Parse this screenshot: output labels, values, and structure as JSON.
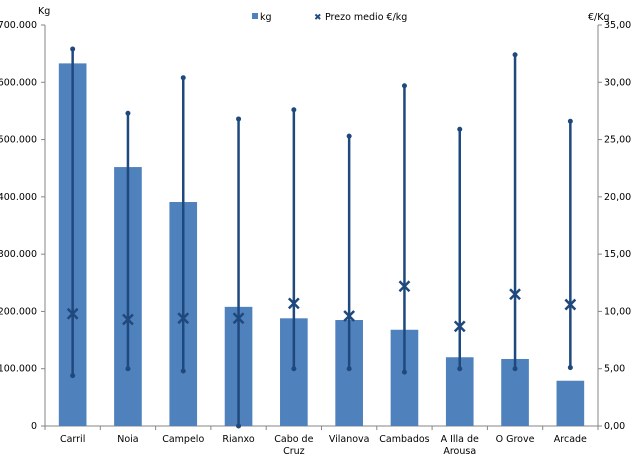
{
  "chart_data": {
    "type": "bar",
    "categories": [
      "Carril",
      "Noia",
      "Campelo",
      "Rianxo",
      "Cabo de Cruz",
      "Vilanova",
      "Cambados",
      "A Illa de Arousa",
      "O Grove",
      "Arcade"
    ],
    "category_lines": [
      [
        "Carril"
      ],
      [
        "Noia"
      ],
      [
        "Campelo"
      ],
      [
        "Rianxo"
      ],
      [
        "Cabo de",
        "Cruz"
      ],
      [
        "Vilanova"
      ],
      [
        "Cambados"
      ],
      [
        "A Illa de",
        "Arousa"
      ],
      [
        "O Grove"
      ],
      [
        "Arcade"
      ]
    ],
    "series": [
      {
        "name": "kg",
        "type": "bar",
        "axis": "left",
        "color": "#4f81bd",
        "values": [
          633000,
          452000,
          391000,
          208000,
          188000,
          185000,
          168000,
          120000,
          117000,
          79000
        ]
      },
      {
        "name": "Prezo medio €/kg",
        "type": "high-low-avg",
        "axis": "right",
        "color": "#1f497d",
        "avg": [
          9.8,
          9.3,
          9.4,
          9.4,
          10.7,
          9.6,
          12.2,
          8.7,
          11.5,
          10.6
        ],
        "high": [
          32.9,
          27.3,
          30.4,
          26.8,
          27.6,
          25.3,
          29.7,
          25.9,
          32.4,
          26.6
        ],
        "low": [
          4.4,
          5.0,
          4.8,
          0.0,
          5.0,
          5.0,
          4.7,
          5.0,
          5.0,
          5.1
        ]
      }
    ],
    "left_axis": {
      "label": "Kg",
      "ylim": [
        0,
        700000
      ],
      "ticks": [
        "0",
        "100.000",
        "200.000",
        "300.000",
        "400.000",
        "500.000",
        "600.000",
        "700.000"
      ]
    },
    "right_axis": {
      "label": "€/Kg",
      "ylim": [
        0,
        35
      ],
      "ticks": [
        "0,00",
        "5,00",
        "10,00",
        "15,00",
        "20,00",
        "25,00",
        "30,00",
        "35,00"
      ]
    },
    "legend": {
      "placement": "top",
      "items": [
        "kg",
        "Prezo medio €/kg"
      ]
    },
    "grid": false
  }
}
